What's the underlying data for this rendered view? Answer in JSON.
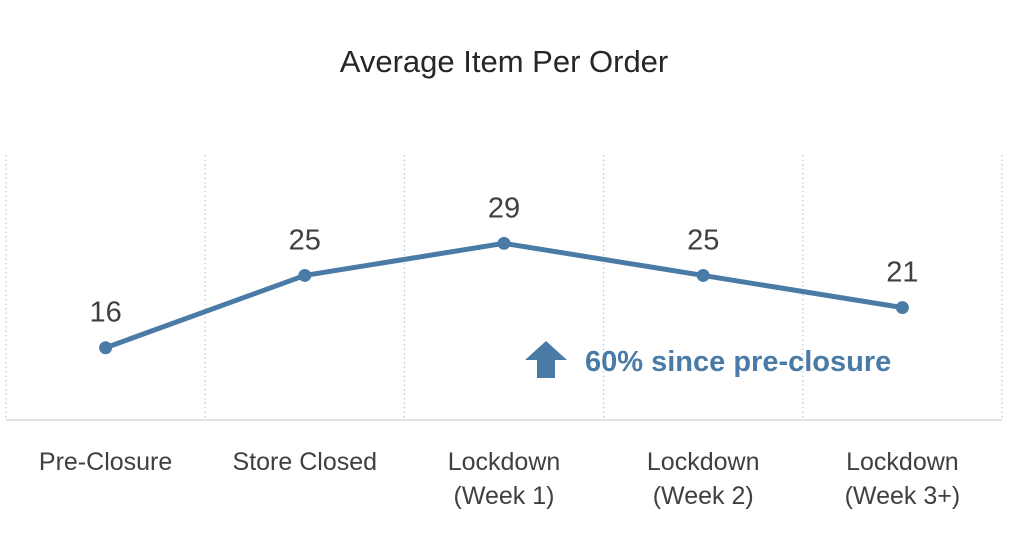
{
  "chart_data": {
    "type": "line",
    "title": "Average Item Per Order",
    "categories": [
      [
        "Pre-Closure"
      ],
      [
        "Store Closed"
      ],
      [
        "Lockdown",
        "(Week 1)"
      ],
      [
        "Lockdown",
        "(Week 2)"
      ],
      [
        "Lockdown",
        "(Week 3+)"
      ]
    ],
    "series": [
      {
        "values": [
          16,
          25,
          29,
          25,
          21
        ]
      }
    ],
    "data_labels": [
      "16",
      "25",
      "29",
      "25",
      "21"
    ],
    "ylim": [
      7,
      40
    ],
    "grid": "vertical-dotted",
    "legend": "none",
    "annotation": {
      "text": "60% since pre-closure",
      "icon": "up-arrow-icon"
    },
    "colors": {
      "line": "#4a7ba6",
      "annotation": "#4a7ba6",
      "text": "#404040",
      "gridline": "#b4c8dc",
      "axis": "#d9d9d9"
    }
  }
}
